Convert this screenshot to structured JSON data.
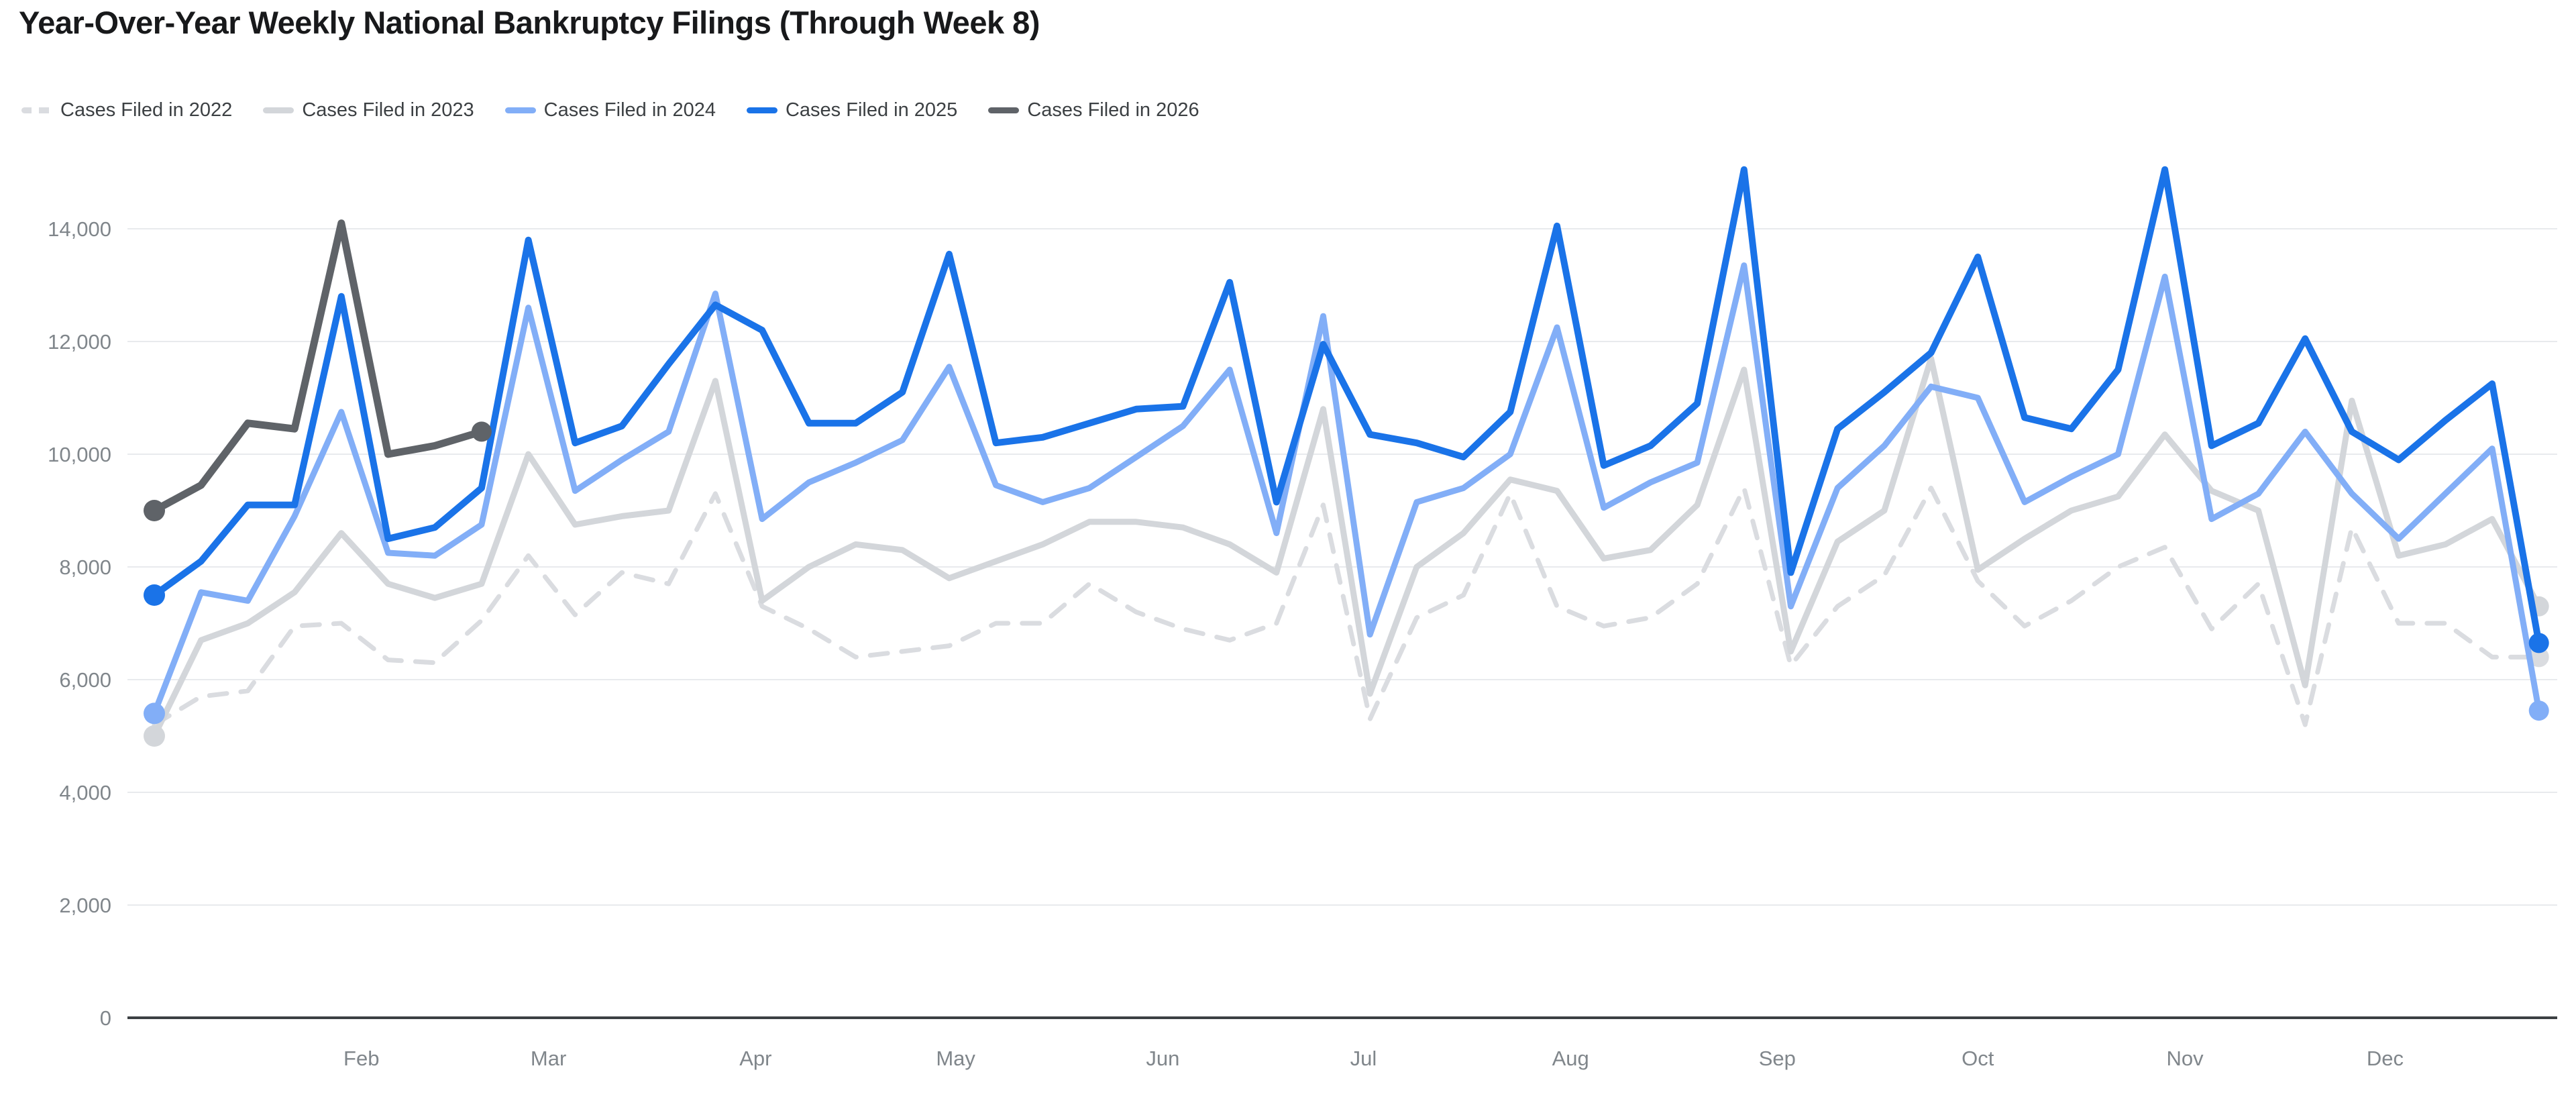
{
  "title": "Year-Over-Year Weekly National Bankruptcy Filings (Through Week 8)",
  "chart_data": {
    "type": "line",
    "title": "Year-Over-Year Weekly National Bankruptcy Filings (Through Week 8)",
    "x_unit": "week of year",
    "weeks": 52,
    "grid": true,
    "legend_position": "top-left",
    "y_axis": {
      "ticks": [
        0,
        2000,
        4000,
        6000,
        8000,
        10000,
        12000,
        14000
      ],
      "tick_format": "#,###",
      "range": [
        0,
        15100
      ]
    },
    "x_axis": {
      "month_labels": [
        {
          "label": "Feb",
          "week": 5.43
        },
        {
          "label": "Mar",
          "week": 9.43
        },
        {
          "label": "Apr",
          "week": 13.86
        },
        {
          "label": "May",
          "week": 18.14
        },
        {
          "label": "Jun",
          "week": 22.57
        },
        {
          "label": "Jul",
          "week": 26.86
        },
        {
          "label": "Aug",
          "week": 31.29
        },
        {
          "label": "Sep",
          "week": 35.71
        },
        {
          "label": "Oct",
          "week": 40.0
        },
        {
          "label": "Nov",
          "week": 44.43
        },
        {
          "label": "Dec",
          "week": 48.71
        }
      ]
    },
    "series": [
      {
        "name": "Cases Filed in 2022",
        "color": "#dadce0",
        "style": "dashed",
        "width": 7,
        "start_dot": false,
        "end_dot": true,
        "values": [
          5200,
          5700,
          5800,
          6950,
          7000,
          6350,
          6300,
          7050,
          8200,
          7150,
          7900,
          7700,
          9300,
          7300,
          6900,
          6400,
          6500,
          6600,
          7000,
          7000,
          7700,
          7200,
          6900,
          6700,
          7000,
          9100,
          5300,
          7100,
          7500,
          9300,
          7300,
          6950,
          7100,
          7700,
          9400,
          6250,
          7300,
          7850,
          9400,
          7750,
          6950,
          7400,
          8000,
          8350,
          6900,
          7700,
          5200,
          8700,
          7000,
          7000,
          6400,
          6400
        ]
      },
      {
        "name": "Cases Filed in 2023",
        "color": "#d3d6da",
        "style": "solid",
        "width": 9,
        "start_dot": true,
        "end_dot": true,
        "values": [
          5000,
          6700,
          7000,
          7550,
          8600,
          7700,
          7450,
          7700,
          10000,
          8750,
          8900,
          9000,
          11300,
          7400,
          8000,
          8400,
          8300,
          7800,
          8100,
          8400,
          8800,
          8800,
          8700,
          8400,
          7900,
          10800,
          5750,
          8000,
          8600,
          9550,
          9350,
          8150,
          8300,
          9100,
          11500,
          6500,
          8450,
          9000,
          11700,
          7950,
          8500,
          9000,
          9250,
          10350,
          9350,
          9000,
          5900,
          10950,
          8200,
          8400,
          8850,
          7300
        ]
      },
      {
        "name": "Cases Filed in 2024",
        "color": "#82aef7",
        "style": "solid",
        "width": 9,
        "start_dot": true,
        "end_dot": true,
        "values": [
          5400,
          7550,
          7400,
          8900,
          10750,
          8250,
          8200,
          8750,
          12600,
          9350,
          9900,
          10400,
          12850,
          8850,
          9500,
          9850,
          10250,
          11550,
          9450,
          9150,
          9400,
          9950,
          10500,
          11500,
          8600,
          12450,
          6800,
          9150,
          9400,
          10000,
          12250,
          9050,
          9500,
          9850,
          13350,
          7300,
          9400,
          10150,
          11200,
          11000,
          9150,
          9600,
          10000,
          13150,
          8850,
          9300,
          10400,
          9300,
          8500,
          9300,
          10100,
          5450
        ]
      },
      {
        "name": "Cases Filed in 2025",
        "color": "#1a73e8",
        "style": "solid",
        "width": 10,
        "start_dot": true,
        "end_dot": true,
        "values": [
          7500,
          8100,
          9100,
          9100,
          12800,
          8500,
          8700,
          9400,
          13800,
          10200,
          10500,
          11600,
          12650,
          12200,
          10550,
          10550,
          11100,
          13550,
          10200,
          10300,
          10550,
          10800,
          10850,
          13050,
          9150,
          11950,
          10350,
          10200,
          9950,
          10750,
          14050,
          9800,
          10150,
          10900,
          15050,
          7900,
          10450,
          11100,
          11800,
          13500,
          10650,
          10450,
          11500,
          15050,
          10150,
          10550,
          12050,
          10400,
          9900,
          10600,
          11250,
          6650
        ]
      },
      {
        "name": "Cases Filed in 2026",
        "color": "#5f6368",
        "style": "solid",
        "width": 11,
        "start_dot": true,
        "end_dot": true,
        "values": [
          9000,
          9450,
          10550,
          10450,
          14100,
          10000,
          10150,
          10400
        ]
      }
    ]
  },
  "colors": {
    "background": "#ffffff",
    "title_text": "#18191b",
    "legend_text": "#3c4043",
    "axis_text": "#80868b",
    "gridline": "#e8eaed",
    "baseline": "#3c4043"
  }
}
